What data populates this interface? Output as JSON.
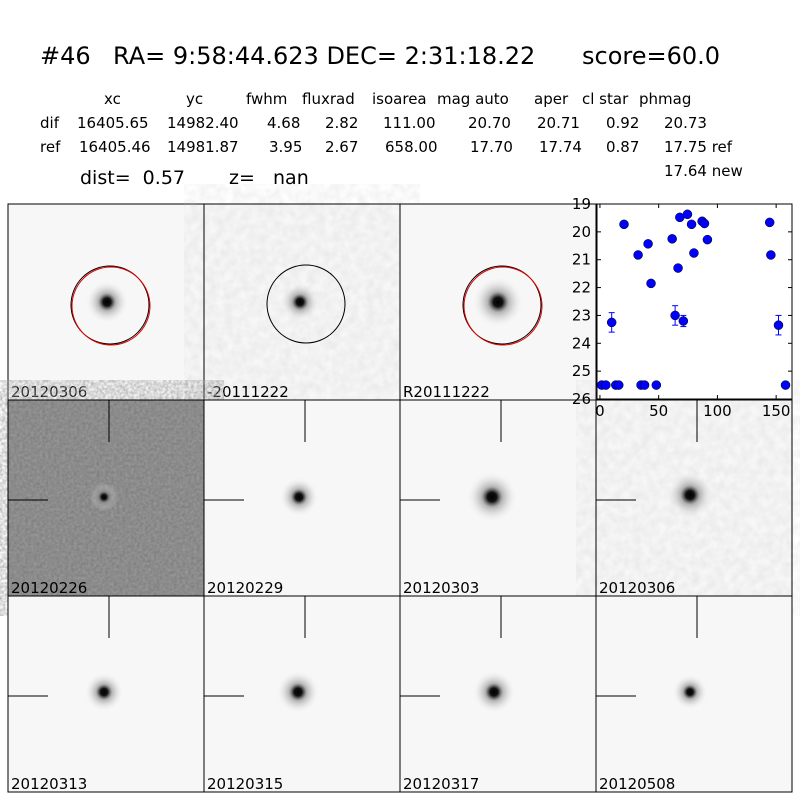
{
  "header": {
    "id": "#46",
    "coords": "RA= 9:58:44.623 DEC= 2:31:18.22",
    "score": "score=60.0"
  },
  "table": {
    "columns": [
      "xc",
      "yc",
      "fwhm",
      "fluxrad",
      "isoarea",
      "mag auto",
      "aper",
      "cl star",
      "phmag"
    ],
    "rows": [
      [
        "dif",
        "16405.65",
        "14982.40",
        "4.68",
        "2.82",
        "111.00",
        "20.70",
        "20.71",
        "0.92",
        "20.73"
      ],
      [
        "ref",
        "16405.46",
        "14981.87",
        "3.95",
        "2.67",
        "658.00",
        "17.70",
        "17.74",
        "0.87",
        "17.75 ref"
      ]
    ],
    "extra": "17.64 new"
  },
  "dist": "dist=  0.57",
  "z": "z=   nan",
  "stamps": [
    "20120306",
    "-20111222",
    "R20111222",
    "20120226",
    "20120229",
    "20120303",
    "20120306",
    "20120313",
    "20120315",
    "20120317",
    "20120508"
  ],
  "chart_data": {
    "type": "scatter",
    "color": "#0000ff",
    "xlim": [
      -2.5,
      163.5
    ],
    "ylim": [
      19,
      26
    ],
    "y_inverted": true,
    "xticks": [
      0,
      50,
      100,
      150
    ],
    "yticks": [
      19,
      20,
      21,
      22,
      23,
      24,
      25,
      26
    ],
    "x": [
      1.5,
      5,
      13.5,
      16,
      35,
      38,
      48,
      158,
      10,
      20.5,
      32.5,
      41,
      43.5,
      61.5,
      64,
      66.5,
      68,
      71,
      74.5,
      78,
      80,
      87,
      89,
      91.5,
      144.5,
      145.5,
      152
    ],
    "values": [
      25.5,
      25.5,
      25.5,
      25.5,
      25.5,
      25.5,
      25.5,
      25.5,
      23.25,
      19.73,
      20.83,
      20.43,
      21.85,
      20.25,
      23.0,
      21.3,
      19.48,
      23.2,
      19.37,
      19.73,
      20.76,
      19.62,
      19.7,
      20.28,
      19.66,
      20.83,
      23.35
    ],
    "errors": [
      null,
      null,
      null,
      null,
      null,
      null,
      null,
      null,
      0.35,
      null,
      null,
      null,
      null,
      null,
      0.35,
      null,
      null,
      0.2,
      null,
      null,
      null,
      null,
      null,
      null,
      null,
      null,
      0.35
    ]
  }
}
